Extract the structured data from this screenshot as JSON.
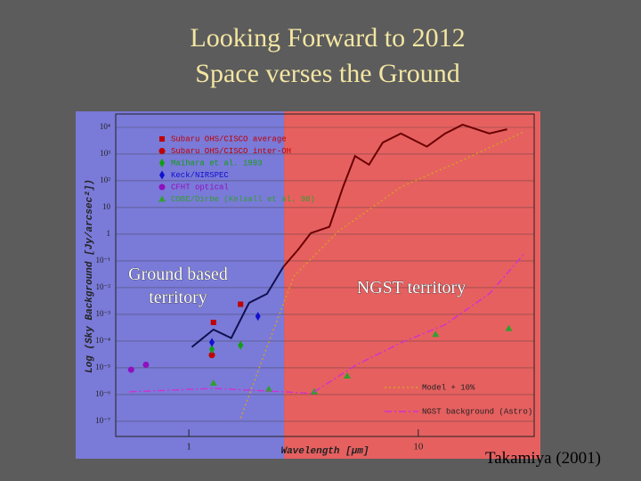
{
  "slide": {
    "title_lines": [
      "Looking Forward to 2012",
      "Space verses the Ground"
    ],
    "credit": "Takamiya (2001)"
  },
  "chart_data": {
    "type": "line",
    "xlabel": "Wavelength [μm]",
    "ylabel": "Log (Sky Background [Jy/arcsec²])",
    "xscale": "log",
    "yscale": "log",
    "xlim": [
      0.48,
      32
    ],
    "ylim": [
      2.7e-08,
      31600
    ],
    "xticks": [
      1,
      10
    ],
    "yticks": [
      {
        "value": 10000,
        "label": "10⁴"
      },
      {
        "value": 1000,
        "label": "10³"
      },
      {
        "value": 100,
        "label": "10²"
      },
      10,
      1,
      {
        "value": 0.1,
        "label": "10⁻¹"
      },
      {
        "value": 0.01,
        "label": "10⁻²"
      },
      {
        "value": 0.001,
        "label": "10⁻³"
      },
      {
        "value": 0.0001,
        "label": "10⁻⁴"
      },
      {
        "value": 1e-05,
        "label": "10⁻⁵"
      },
      {
        "value": 1e-06,
        "label": "10⁻⁶"
      },
      {
        "value": 1e-07,
        "label": "10⁻⁷"
      }
    ],
    "territory_boundary": 2.6,
    "regions": [
      {
        "label": "Ground based territory",
        "color": "#7a7ad8"
      },
      {
        "label": "NGST territory",
        "color": "#e66060"
      }
    ],
    "series": [
      {
        "color": "#101050",
        "style": "line",
        "x": [
          1.03,
          1.28,
          1.53,
          1.83,
          2.19,
          2.58
        ],
        "values": [
          6e-05,
          0.00027,
          0.00013,
          0.0027,
          0.0059,
          0.06
        ]
      },
      {
        "color": "#6b0000",
        "style": "line",
        "x": [
          2.58,
          3.0,
          3.4,
          4.1,
          4.7,
          5.3,
          6.1,
          7.0,
          8.4,
          10.9,
          13.1,
          15.6,
          20.4,
          24.4
        ],
        "values": [
          0.06,
          0.27,
          1.1,
          1.9,
          59,
          850,
          400,
          2700,
          5900,
          1900,
          5900,
          12600,
          5900,
          8500
        ]
      },
      {
        "name": "Subaru OHS/CISCO average",
        "color": "#c00000",
        "style": "square",
        "legend": "top-left",
        "x": [
          1.28,
          1.68
        ],
        "values": [
          0.0005,
          0.0024
        ]
      },
      {
        "name": "Subaru OHS/CISCO inter-OH",
        "color": "#c00000",
        "style": "circle",
        "legend": "top-left",
        "x": [
          1.26
        ],
        "values": [
          3e-05
        ]
      },
      {
        "name": "Maihara et al. 1993",
        "color": "#10a010",
        "style": "diamond",
        "legend": "top-left",
        "x": [
          1.26,
          1.68
        ],
        "values": [
          5e-05,
          7e-05
        ]
      },
      {
        "name": "Keck/NIRSPEC",
        "color": "#1010d0",
        "style": "diamond",
        "legend": "top-left",
        "x": [
          1.26,
          2.0
        ],
        "values": [
          9e-05,
          0.00085
        ]
      },
      {
        "name": "CFHT optical",
        "color": "#9010c0",
        "style": "circle",
        "legend": "top-left",
        "x": [
          0.56,
          0.65
        ],
        "values": [
          8.5e-06,
          1.3e-05
        ]
      },
      {
        "name": "COBE/Dirbe (Kelsall et al. 98)",
        "color": "#30a030",
        "style": "triangle",
        "legend": "top-left",
        "x": [
          1.28,
          2.23,
          3.52,
          4.9,
          11.9,
          24.8
        ],
        "values": [
          2.7e-06,
          1.6e-06,
          1.3e-06,
          5e-06,
          0.00018,
          0.0003
        ]
      },
      {
        "name": "Model + 10%",
        "color": "#d8a020",
        "style": "dotted",
        "legend": "bottom-right",
        "x": [
          1.68,
          2.19,
          2.87,
          4.47,
          8.4,
          15.6,
          29
        ],
        "values": [
          1.3e-07,
          6e-05,
          0.027,
          1.26,
          59,
          590,
          7000
        ]
      },
      {
        "name": "NGST background (Astro)",
        "color": "#d030d0",
        "style": "dashdot",
        "legend": "bottom-right",
        "x": [
          0.55,
          1.28,
          2.62,
          3.43,
          5.35,
          8.36,
          13.0,
          20.4,
          29
        ],
        "values": [
          1.26e-06,
          1.7e-06,
          1.26e-06,
          1.1e-06,
          1.26e-05,
          8.5e-05,
          0.0004,
          0.0059,
          0.19
        ]
      }
    ]
  }
}
